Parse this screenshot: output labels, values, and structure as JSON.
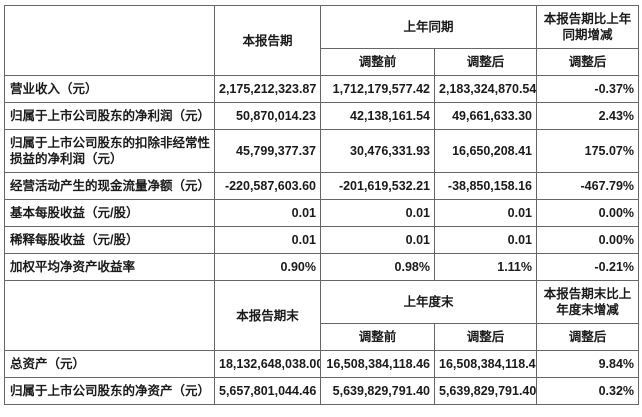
{
  "section1": {
    "headers": {
      "current_period": "本报告期",
      "prior_period": "上年同期",
      "change": "本报告期比上年同期增减",
      "adj_before": "调整前",
      "adj_after": "调整后",
      "adj_change": "调整后"
    },
    "rows": [
      {
        "label": "营业收入（元）",
        "current": "2,175,212,323.87",
        "before": "1,712,179,577.42",
        "after": "2,183,324,870.54",
        "change": "-0.37%"
      },
      {
        "label": "归属于上市公司股东的净利润（元）",
        "current": "50,870,014.23",
        "before": "42,138,161.54",
        "after": "49,661,633.30",
        "change": "2.43%"
      },
      {
        "label": "归属于上市公司股东的扣除非经常性损益的净利润（元）",
        "current": "45,799,377.37",
        "before": "30,476,331.93",
        "after": "16,650,208.41",
        "change": "175.07%"
      },
      {
        "label": "经营活动产生的现金流量净额（元）",
        "current": "-220,587,603.60",
        "before": "-201,619,532.21",
        "after": "-38,850,158.16",
        "change": "-467.79%"
      },
      {
        "label": "基本每股收益（元/股）",
        "current": "0.01",
        "before": "0.01",
        "after": "0.01",
        "change": "0.00%"
      },
      {
        "label": "稀释每股收益（元/股）",
        "current": "0.01",
        "before": "0.01",
        "after": "0.01",
        "change": "0.00%"
      },
      {
        "label": "加权平均净资产收益率",
        "current": "0.90%",
        "before": "0.98%",
        "after": "1.11%",
        "change": "-0.21%"
      }
    ]
  },
  "section2": {
    "headers": {
      "current_period": "本报告期末",
      "prior_period": "上年度末",
      "change": "本报告期末比上年度末增减",
      "adj_before": "调整前",
      "adj_after": "调整后",
      "adj_change": "调整后"
    },
    "rows": [
      {
        "label": "总资产（元）",
        "current": "18,132,648,038.00",
        "before": "16,508,384,118.46",
        "after": "16,508,384,118.46",
        "change": "9.84%"
      },
      {
        "label": "归属于上市公司股东的净资产（元）",
        "current": "5,657,801,044.46",
        "before": "5,639,829,791.40",
        "after": "5,639,829,791.40",
        "change": "0.32%"
      }
    ]
  }
}
